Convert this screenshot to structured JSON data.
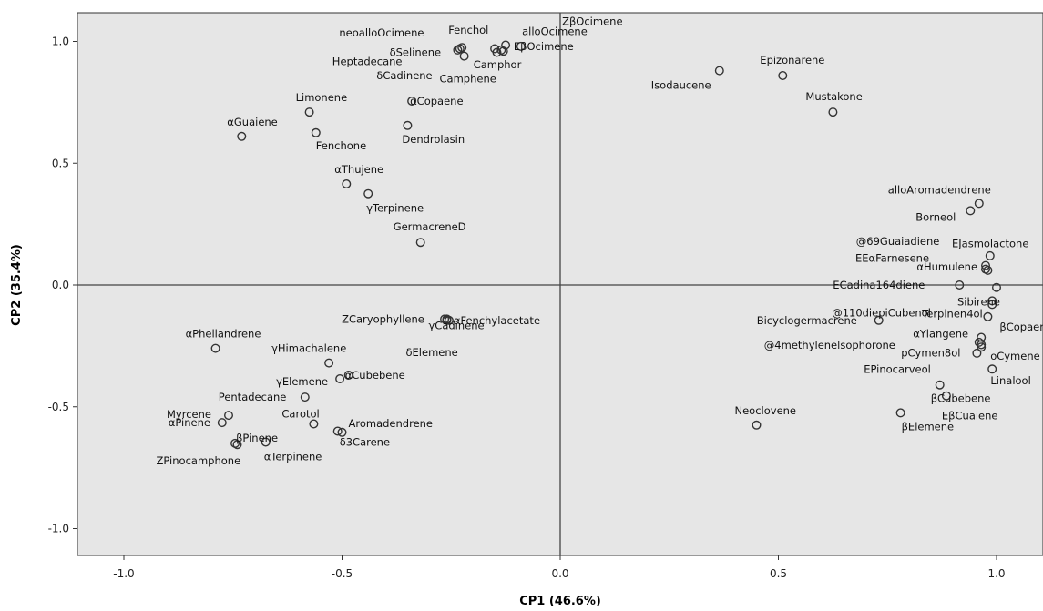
{
  "chart_data": {
    "type": "scatter",
    "title": "",
    "xlabel": "CP1 (46.6%)",
    "ylabel": "CP2 (35.4%)",
    "xlim": [
      -1.1,
      1.1
    ],
    "ylim": [
      -1.1,
      1.1
    ],
    "xticks": [
      -1.0,
      -0.5,
      0.0,
      0.5,
      1.0
    ],
    "yticks": [
      -1.0,
      -0.5,
      0.0,
      0.5,
      1.0
    ],
    "xtick_labels": [
      "-1.0",
      "-0.5",
      "0.0",
      "0.5",
      "1.0"
    ],
    "ytick_labels": [
      "-1.0",
      "-0.5",
      "0.0",
      "0.5",
      "1.0"
    ],
    "grid": false,
    "reference_lines": {
      "x": 0.0,
      "y": 0.0
    },
    "plot_background": "#e6e6e6",
    "points": [
      {
        "label": "neoalloOcimene",
        "x": -0.235,
        "y": 0.965
      },
      {
        "label": "Fenchol",
        "x": -0.225,
        "y": 0.975
      },
      {
        "label": "alloOcimene",
        "x": -0.15,
        "y": 0.97
      },
      {
        "label": "ZβOcimene",
        "x": -0.125,
        "y": 0.985
      },
      {
        "label": "EβOcimene",
        "x": -0.09,
        "y": 0.98
      },
      {
        "label": "δSelinene",
        "x": -0.22,
        "y": 0.94
      },
      {
        "label": "Camphor",
        "x": -0.13,
        "y": 0.96
      },
      {
        "label": "Camphene",
        "x": -0.145,
        "y": 0.955
      },
      {
        "label": "Heptadecane",
        "x": -0.23,
        "y": 0.97
      },
      {
        "label": "δCadinene",
        "x": -0.135,
        "y": 0.965
      },
      {
        "label": "αCopaene",
        "x": -0.34,
        "y": 0.755
      },
      {
        "label": "Limonene",
        "x": -0.575,
        "y": 0.71
      },
      {
        "label": "αGuaiene",
        "x": -0.73,
        "y": 0.61
      },
      {
        "label": "Fenchone",
        "x": -0.56,
        "y": 0.625
      },
      {
        "label": "Dendrolasin",
        "x": -0.35,
        "y": 0.655
      },
      {
        "label": "αThujene",
        "x": -0.49,
        "y": 0.415
      },
      {
        "label": "γTerpinene",
        "x": -0.44,
        "y": 0.375
      },
      {
        "label": "GermacreneD",
        "x": -0.32,
        "y": 0.175
      },
      {
        "label": "Isodaucene",
        "x": 0.365,
        "y": 0.88
      },
      {
        "label": "Epizonarene",
        "x": 0.51,
        "y": 0.86
      },
      {
        "label": "Mustakone",
        "x": 0.625,
        "y": 0.71
      },
      {
        "label": "alloAromadendrene",
        "x": 0.96,
        "y": 0.335
      },
      {
        "label": "Borneol",
        "x": 0.94,
        "y": 0.305
      },
      {
        "label": "@69Guaiadiene",
        "x": 0.985,
        "y": 0.12
      },
      {
        "label": "EJasmolactone",
        "x": 0.975,
        "y": 0.08
      },
      {
        "label": "EEαFarnesene",
        "x": 0.975,
        "y": 0.065
      },
      {
        "label": "αHumulene",
        "x": 0.98,
        "y": 0.06
      },
      {
        "label": "ECadina164diene",
        "x": 0.915,
        "y": 0.0
      },
      {
        "label": "Sibirene",
        "x": 1.0,
        "y": -0.01
      },
      {
        "label": "@110diepiCubenol",
        "x": 0.99,
        "y": -0.065
      },
      {
        "label": "Terpinen4ol",
        "x": 0.99,
        "y": -0.08
      },
      {
        "label": "Bicyclogermacrene",
        "x": 0.73,
        "y": -0.145
      },
      {
        "label": "βCopaene",
        "x": 0.98,
        "y": -0.13
      },
      {
        "label": "αYlangene",
        "x": 0.965,
        "y": -0.215
      },
      {
        "label": "@4methylenelsophorone",
        "x": 0.96,
        "y": -0.235
      },
      {
        "label": "pCymen8ol",
        "x": 0.965,
        "y": -0.245
      },
      {
        "label": "oCymene",
        "x": 0.965,
        "y": -0.255
      },
      {
        "label": "Linalool",
        "x": 0.955,
        "y": -0.28
      },
      {
        "label": "EPinocarveol",
        "x": 0.99,
        "y": -0.345
      },
      {
        "label": "βCubebene",
        "x": 0.87,
        "y": -0.41
      },
      {
        "label": "EβCuaiene",
        "x": 0.885,
        "y": -0.455
      },
      {
        "label": "βElemene",
        "x": 0.78,
        "y": -0.525
      },
      {
        "label": "Neoclovene",
        "x": 0.45,
        "y": -0.575
      },
      {
        "label": "γCadinene",
        "x": -0.26,
        "y": -0.14
      },
      {
        "label": "ZCaryophyllene",
        "x": -0.265,
        "y": -0.14
      },
      {
        "label": "αFenchylacetate",
        "x": -0.255,
        "y": -0.145
      },
      {
        "label": "δElemene",
        "x": -0.26,
        "y": -0.145
      },
      {
        "label": "αPhellandrene",
        "x": -0.79,
        "y": -0.26
      },
      {
        "label": "γHimachalene",
        "x": -0.53,
        "y": -0.32
      },
      {
        "label": "γElemene",
        "x": -0.505,
        "y": -0.385
      },
      {
        "label": "αCubebene",
        "x": -0.485,
        "y": -0.37
      },
      {
        "label": "Myrcene",
        "x": -0.76,
        "y": -0.535
      },
      {
        "label": "Pentadecane",
        "x": -0.585,
        "y": -0.46
      },
      {
        "label": "Carotol",
        "x": -0.565,
        "y": -0.57
      },
      {
        "label": "Aromadendrene",
        "x": -0.5,
        "y": -0.605
      },
      {
        "label": "αPinene",
        "x": -0.775,
        "y": -0.565
      },
      {
        "label": "βPinene",
        "x": -0.745,
        "y": -0.65
      },
      {
        "label": "ZPinocamphone",
        "x": -0.74,
        "y": -0.655
      },
      {
        "label": "αTerpinene",
        "x": -0.675,
        "y": -0.645
      },
      {
        "label": "δ3Carene",
        "x": -0.51,
        "y": -0.6
      }
    ]
  }
}
